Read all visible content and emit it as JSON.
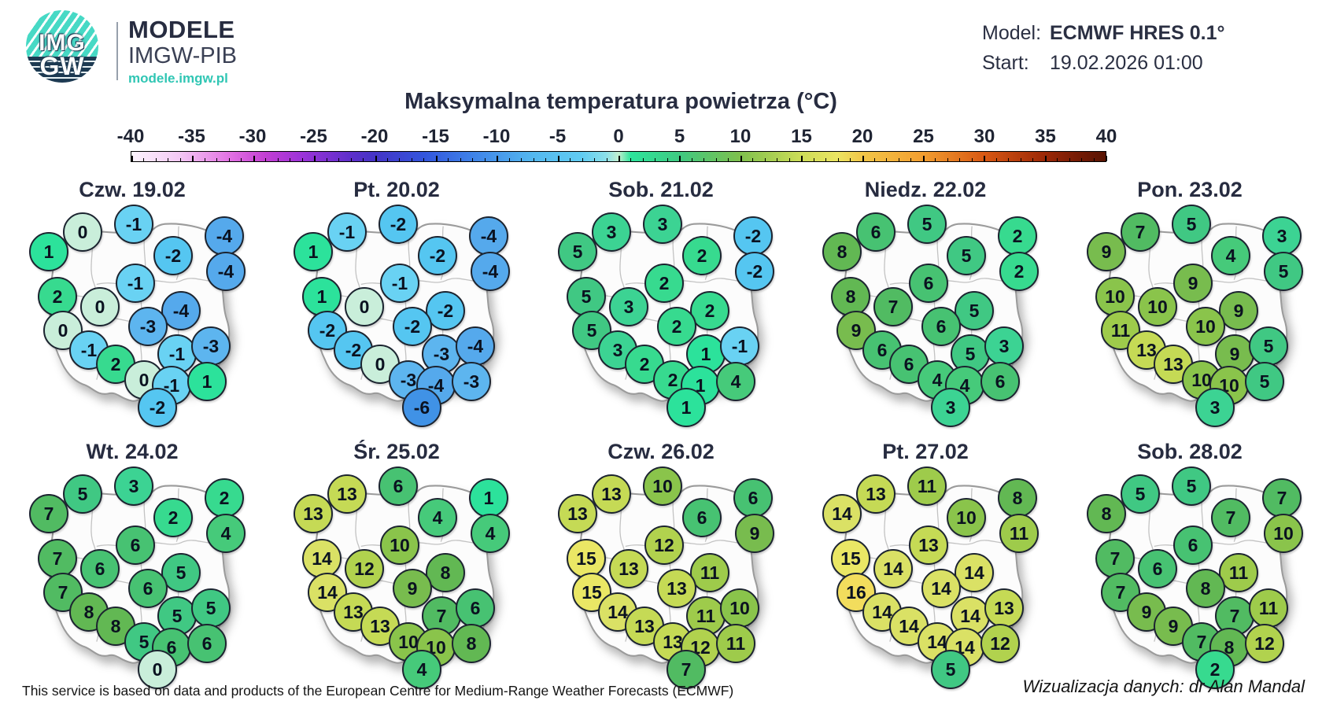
{
  "header": {
    "logo": {
      "imgw_top": "IMG",
      "imgw_bottom": "GW",
      "brand_line1": "MODELE",
      "brand_line2": "IMGW-PIB",
      "brand_url": "modele.imgw.pl",
      "teal": "#47d9c5",
      "navy": "#1d3a52"
    },
    "model_label": "Model:",
    "model_value": "ECMWF HRES 0.1°",
    "start_label": "Start:",
    "start_value": "19.02.2026 01:00"
  },
  "title": "Maksymalna temperatura powietrza (°C)",
  "colorbar": {
    "min": -40,
    "max": 40,
    "tick_labels": [
      "-40",
      "-35",
      "-30",
      "-25",
      "-20",
      "-15",
      "-10",
      "-5",
      "0",
      "5",
      "10",
      "15",
      "20",
      "25",
      "30",
      "35",
      "40"
    ],
    "gradient": [
      [
        -40,
        "#fdf4fd"
      ],
      [
        -36,
        "#f3c8f4"
      ],
      [
        -32,
        "#e273e3"
      ],
      [
        -29,
        "#c33fd3"
      ],
      [
        -26,
        "#9c33d8"
      ],
      [
        -22,
        "#5e2fcb"
      ],
      [
        -20,
        "#4534c7"
      ],
      [
        -16,
        "#3355dc"
      ],
      [
        -12,
        "#3f82e8"
      ],
      [
        -7,
        "#54b8ef"
      ],
      [
        -3,
        "#61ccf2"
      ],
      [
        -1,
        "#8ce0e9"
      ],
      [
        0,
        "#c2eecf"
      ],
      [
        1,
        "#2de59c"
      ],
      [
        5,
        "#3fc981"
      ],
      [
        10,
        "#7fc04d"
      ],
      [
        15,
        "#cddd58"
      ],
      [
        18,
        "#ebe462"
      ],
      [
        20,
        "#f2c648"
      ],
      [
        25,
        "#f29e30"
      ],
      [
        30,
        "#d85813"
      ],
      [
        35,
        "#9c2807"
      ],
      [
        38,
        "#711a04"
      ],
      [
        40,
        "#581403"
      ]
    ]
  },
  "value_colors": {
    "-6": "#4092e6",
    "-4": "#55a9ec",
    "-3": "#5db5ef",
    "-2": "#55c6f1",
    "-1": "#69d2f3",
    "0": "#c9eeda",
    "1": "#2ce29b",
    "2": "#37da8f",
    "3": "#3cd393",
    "4": "#46ca7a",
    "5": "#40c883",
    "6": "#47c272",
    "7": "#51bb62",
    "8": "#62b853",
    "9": "#78bc4e",
    "10": "#8ac44b",
    "11": "#9ecb4b",
    "12": "#b1d24e",
    "13": "#c5da55",
    "14": "#dae165",
    "15": "#eae765",
    "16": "#f2dd5d"
  },
  "city_positions": [
    [
      105,
      37
    ],
    [
      170,
      27
    ],
    [
      220,
      67
    ],
    [
      285,
      42
    ],
    [
      62,
      62
    ],
    [
      172,
      102
    ],
    [
      287,
      87
    ],
    [
      73,
      119
    ],
    [
      127,
      132
    ],
    [
      230,
      137
    ],
    [
      80,
      162
    ],
    [
      188,
      157
    ],
    [
      113,
      187
    ],
    [
      225,
      192
    ],
    [
      268,
      182
    ],
    [
      147,
      205
    ],
    [
      183,
      225
    ],
    [
      218,
      232
    ],
    [
      263,
      227
    ],
    [
      200,
      260
    ]
  ],
  "maps": [
    {
      "title": "Czw. 19.02",
      "values": [
        0,
        -1,
        -2,
        -4,
        1,
        -1,
        -4,
        2,
        0,
        -4,
        0,
        -3,
        -1,
        -1,
        -3,
        2,
        0,
        -1,
        1,
        -2
      ]
    },
    {
      "title": "Pt. 20.02",
      "values": [
        -1,
        -2,
        -2,
        -4,
        1,
        -1,
        -4,
        1,
        0,
        -2,
        -2,
        -2,
        -2,
        -3,
        -4,
        0,
        -3,
        -4,
        -3,
        -6
      ]
    },
    {
      "title": "Sob. 21.02",
      "values": [
        3,
        3,
        2,
        -2,
        5,
        2,
        -2,
        5,
        3,
        2,
        5,
        2,
        3,
        1,
        -1,
        2,
        2,
        1,
        4,
        1
      ]
    },
    {
      "title": "Niedz. 22.02",
      "values": [
        6,
        5,
        5,
        2,
        8,
        6,
        2,
        8,
        7,
        5,
        9,
        6,
        6,
        5,
        3,
        6,
        4,
        4,
        6,
        3
      ]
    },
    {
      "title": "Pon. 23.02",
      "values": [
        7,
        5,
        4,
        3,
        9,
        9,
        5,
        10,
        10,
        9,
        11,
        10,
        13,
        9,
        5,
        13,
        10,
        10,
        5,
        3
      ]
    },
    {
      "title": "Wt. 24.02",
      "values": [
        5,
        3,
        2,
        2,
        7,
        6,
        4,
        7,
        6,
        5,
        7,
        6,
        8,
        5,
        5,
        8,
        5,
        6,
        6,
        0
      ]
    },
    {
      "title": "Śr. 25.02",
      "values": [
        13,
        6,
        4,
        1,
        13,
        10,
        4,
        14,
        12,
        8,
        14,
        9,
        13,
        7,
        6,
        13,
        10,
        10,
        8,
        4
      ]
    },
    {
      "title": "Czw. 26.02",
      "values": [
        13,
        10,
        6,
        6,
        13,
        12,
        9,
        15,
        13,
        11,
        15,
        13,
        14,
        11,
        10,
        13,
        13,
        12,
        11,
        7
      ]
    },
    {
      "title": "Pt. 27.02",
      "values": [
        13,
        11,
        10,
        8,
        14,
        13,
        11,
        15,
        14,
        14,
        16,
        14,
        14,
        14,
        13,
        14,
        14,
        14,
        12,
        5
      ]
    },
    {
      "title": "Sob. 28.02",
      "values": [
        5,
        5,
        7,
        7,
        8,
        6,
        10,
        7,
        6,
        11,
        7,
        8,
        9,
        7,
        11,
        9,
        7,
        8,
        12,
        2
      ]
    }
  ],
  "footer": {
    "left": "This service is based on data and products of the European Centre for Medium-Range Weather Forecasts (ECMWF)",
    "right": "Wizualizacja danych: dr Alan Mandal"
  }
}
